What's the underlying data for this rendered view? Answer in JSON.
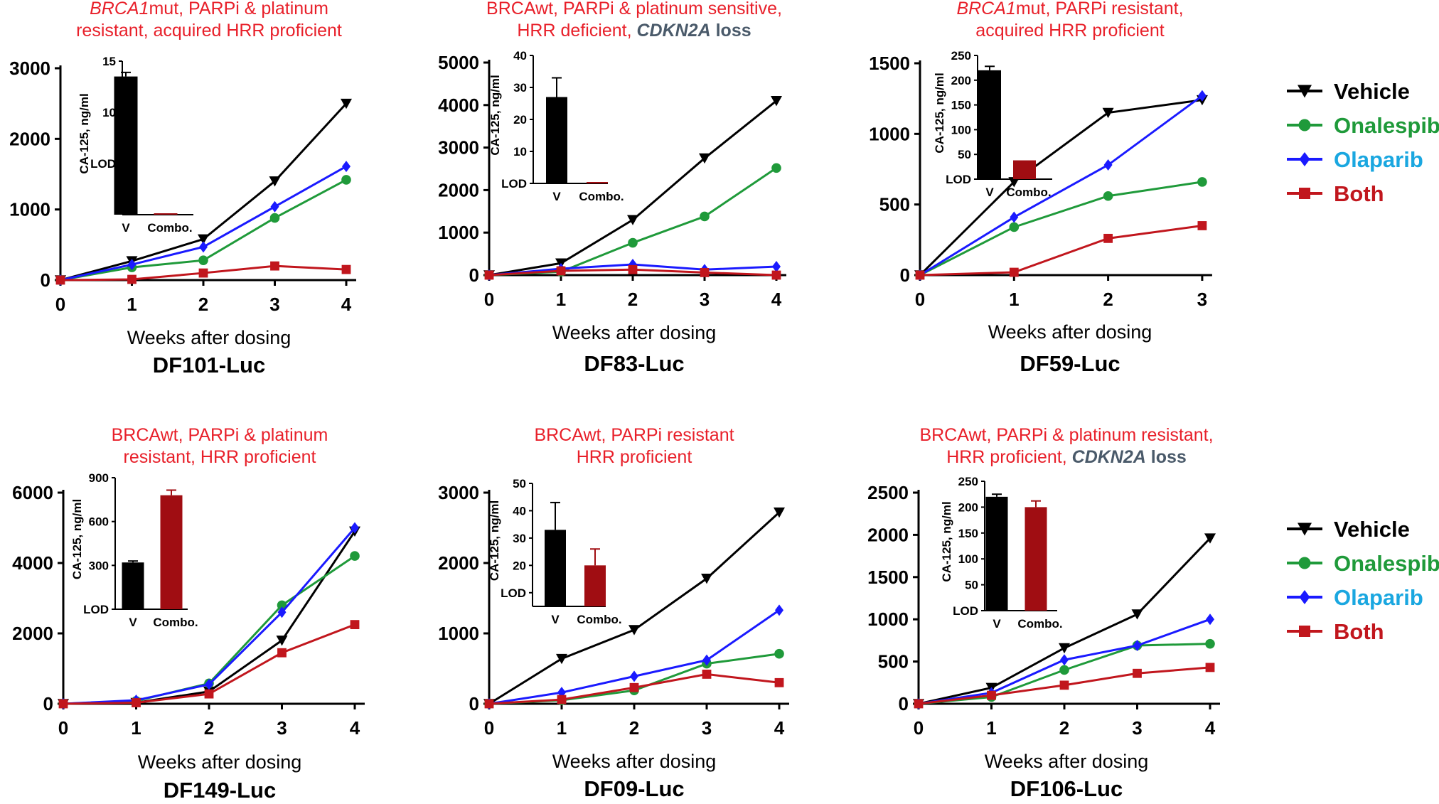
{
  "colors": {
    "Vehicle": "#000000",
    "Onalespib": "#1f9a3a",
    "Olaparib": "#1a1aff",
    "Both": "#c1161d",
    "subtitle_red": "#e8202a",
    "subtitle_gray": "#4a5a6a",
    "legend_Onalespib_text": "#1f9a3a",
    "legend_Olaparib_text": "#1aa7e0",
    "legend_Both_text": "#c1161d",
    "inset_V": "#000000",
    "inset_Combo": "#a00d12"
  },
  "legend": {
    "entries": [
      {
        "name": "Vehicle",
        "marker": "tri-down"
      },
      {
        "name": "Onalespib",
        "marker": "circle"
      },
      {
        "name": "Olaparib",
        "marker": "diamond"
      },
      {
        "name": "Both",
        "marker": "square"
      }
    ]
  },
  "chart_data": [
    {
      "type": "line",
      "title": "DF101-Luc",
      "subtitle": [
        [
          {
            "t": "BRCA1",
            "i": true
          },
          {
            "t": "mut, PARPi & platinum"
          }
        ],
        [
          {
            "t": "resistant, acquired HRR proficient"
          }
        ]
      ],
      "xlabel": "Weeks after dosing",
      "x": [
        0,
        1,
        2,
        3,
        4
      ],
      "ylim": [
        0,
        3000
      ],
      "yticks": [
        0,
        1000,
        2000,
        3000
      ],
      "series": [
        {
          "name": "Vehicle",
          "values": [
            0,
            270,
            580,
            1400,
            2500
          ]
        },
        {
          "name": "Onalespib",
          "values": [
            0,
            180,
            280,
            880,
            1420
          ]
        },
        {
          "name": "Olaparib",
          "values": [
            0,
            220,
            470,
            1040,
            1610
          ]
        },
        {
          "name": "Both",
          "values": [
            0,
            10,
            100,
            200,
            150
          ]
        }
      ],
      "inset": {
        "ylabel": "CA-125, ng/ml",
        "ylim": [
          0,
          15
        ],
        "yticks": [
          5,
          10,
          15
        ],
        "yticklabels": [
          "LOD",
          "10",
          "15"
        ],
        "categories": [
          "V",
          "Combo."
        ],
        "values": [
          13.5,
          0
        ],
        "errors": [
          0.4,
          0
        ]
      }
    },
    {
      "type": "line",
      "title": "DF83-Luc",
      "subtitle": [
        [
          {
            "t": "BRCAwt, PARPi & platinum sensitive,"
          }
        ],
        [
          {
            "t": "HRR deficient, "
          },
          {
            "t": "CDKN2A",
            "i": true,
            "b": true,
            "gray": true
          },
          {
            "t": " loss",
            "b": true,
            "gray": true
          }
        ]
      ],
      "xlabel": "Weeks after dosing",
      "x": [
        0,
        1,
        2,
        3,
        4
      ],
      "ylim": [
        0,
        5000
      ],
      "yticks": [
        0,
        1000,
        2000,
        3000,
        4000,
        5000
      ],
      "series": [
        {
          "name": "Vehicle",
          "values": [
            0,
            280,
            1300,
            2750,
            4100
          ]
        },
        {
          "name": "Onalespib",
          "values": [
            0,
            80,
            760,
            1380,
            2520
          ]
        },
        {
          "name": "Olaparib",
          "values": [
            0,
            150,
            250,
            130,
            200
          ]
        },
        {
          "name": "Both",
          "values": [
            0,
            100,
            130,
            60,
            0
          ]
        }
      ],
      "inset": {
        "ylabel": "CA-125, ng/ml",
        "ylim": [
          0,
          40
        ],
        "yticks": [
          0,
          10,
          20,
          30,
          40
        ],
        "yticklabels": [
          "LOD",
          "10",
          "20",
          "30",
          "40"
        ],
        "categories": [
          "V",
          "Combo."
        ],
        "values": [
          27,
          0
        ],
        "errors": [
          6,
          0
        ]
      }
    },
    {
      "type": "line",
      "title": "DF59-Luc",
      "subtitle": [
        [
          {
            "t": "BRCA1",
            "i": true
          },
          {
            "t": "mut, PARPi resistant,"
          }
        ],
        [
          {
            "t": "acquired HRR proficient"
          }
        ]
      ],
      "xlabel": "Weeks after dosing",
      "x": [
        0,
        1,
        2,
        3
      ],
      "ylim": [
        0,
        1500
      ],
      "yticks": [
        0,
        500,
        1000,
        1500
      ],
      "series": [
        {
          "name": "Vehicle",
          "values": [
            0,
            660,
            1150,
            1240
          ]
        },
        {
          "name": "Onalespib",
          "values": [
            0,
            340,
            560,
            660
          ]
        },
        {
          "name": "Olaparib",
          "values": [
            0,
            410,
            780,
            1270
          ]
        },
        {
          "name": "Both",
          "values": [
            0,
            20,
            260,
            350
          ]
        }
      ],
      "inset": {
        "ylabel": "CA-125, ng/ml",
        "ylim": [
          0,
          250
        ],
        "yticks": [
          0,
          50,
          100,
          150,
          200,
          250
        ],
        "yticklabels": [
          "LOD",
          "50",
          "100",
          "150",
          "200",
          "250"
        ],
        "categories": [
          "V",
          "Combo."
        ],
        "values": [
          220,
          38
        ],
        "errors": [
          8,
          0
        ]
      }
    },
    {
      "type": "line",
      "title": "DF149-Luc",
      "subtitle": [
        [
          {
            "t": "BRCAwt, PARPi & platinum"
          }
        ],
        [
          {
            "t": "resistant, HRR proficient"
          }
        ]
      ],
      "xlabel": "Weeks after dosing",
      "x": [
        0,
        1,
        2,
        3,
        4
      ],
      "ylim": [
        0,
        6000
      ],
      "yticks": [
        0,
        2000,
        4000,
        6000
      ],
      "series": [
        {
          "name": "Vehicle",
          "values": [
            0,
            30,
            350,
            1800,
            4900
          ]
        },
        {
          "name": "Onalespib",
          "values": [
            0,
            80,
            580,
            2800,
            4200
          ]
        },
        {
          "name": "Olaparib",
          "values": [
            0,
            100,
            550,
            2600,
            5000
          ]
        },
        {
          "name": "Both",
          "values": [
            0,
            30,
            280,
            1450,
            2250
          ]
        }
      ],
      "inset": {
        "ylabel": "CA-125, ng/ml",
        "ylim": [
          0,
          900
        ],
        "yticks": [
          0,
          300,
          600,
          900
        ],
        "yticklabels": [
          "LOD",
          "300",
          "600",
          "900"
        ],
        "categories": [
          "V",
          "Combo."
        ],
        "values": [
          320,
          780
        ],
        "errors": [
          10,
          35
        ]
      }
    },
    {
      "type": "line",
      "title": "DF09-Luc",
      "subtitle": [
        [
          {
            "t": "BRCAwt, PARPi resistant"
          }
        ],
        [
          {
            "t": "HRR proficient"
          }
        ]
      ],
      "xlabel": "Weeks after dosing",
      "x": [
        0,
        1,
        2,
        3,
        4
      ],
      "ylim": [
        0,
        3000
      ],
      "yticks": [
        0,
        1000,
        2000,
        3000
      ],
      "series": [
        {
          "name": "Vehicle",
          "values": [
            0,
            640,
            1050,
            1780,
            2720
          ]
        },
        {
          "name": "Onalespib",
          "values": [
            0,
            50,
            190,
            570,
            710
          ]
        },
        {
          "name": "Olaparib",
          "values": [
            0,
            160,
            390,
            620,
            1330
          ]
        },
        {
          "name": "Both",
          "values": [
            0,
            60,
            230,
            420,
            300
          ]
        }
      ],
      "inset": {
        "ylabel": "CA-125, ng/ml",
        "ylim": [
          5,
          50
        ],
        "yticks": [
          10,
          20,
          30,
          40,
          50
        ],
        "yticklabels": [
          "LOD",
          "20",
          "30",
          "40",
          "50"
        ],
        "categories": [
          "V",
          "Combo."
        ],
        "values": [
          33,
          20
        ],
        "errors": [
          10,
          6
        ]
      }
    },
    {
      "type": "line",
      "title": "DF106-Luc",
      "subtitle": [
        [
          {
            "t": "BRCAwt, PARPi & platinum resistant,"
          }
        ],
        [
          {
            "t": "HRR proficient, "
          },
          {
            "t": "CDKN2A",
            "i": true,
            "b": true,
            "gray": true
          },
          {
            "t": " loss",
            "b": true,
            "gray": true
          }
        ]
      ],
      "xlabel": "Weeks after dosing",
      "x": [
        0,
        1,
        2,
        3,
        4
      ],
      "ylim": [
        0,
        2500
      ],
      "yticks": [
        0,
        500,
        1000,
        1500,
        2000,
        2500
      ],
      "series": [
        {
          "name": "Vehicle",
          "values": [
            0,
            190,
            660,
            1060,
            1960
          ]
        },
        {
          "name": "Onalespib",
          "values": [
            0,
            80,
            400,
            690,
            710
          ]
        },
        {
          "name": "Olaparib",
          "values": [
            0,
            130,
            520,
            690,
            1000
          ]
        },
        {
          "name": "Both",
          "values": [
            0,
            100,
            220,
            360,
            430
          ]
        }
      ],
      "inset": {
        "ylabel": "CA-125, ng/ml",
        "ylim": [
          0,
          250
        ],
        "yticks": [
          0,
          50,
          100,
          150,
          200,
          250
        ],
        "yticklabels": [
          "LOD",
          "50",
          "100",
          "150",
          "200",
          "250"
        ],
        "categories": [
          "V",
          "Combo."
        ],
        "values": [
          220,
          200
        ],
        "errors": [
          5,
          12
        ]
      }
    }
  ]
}
